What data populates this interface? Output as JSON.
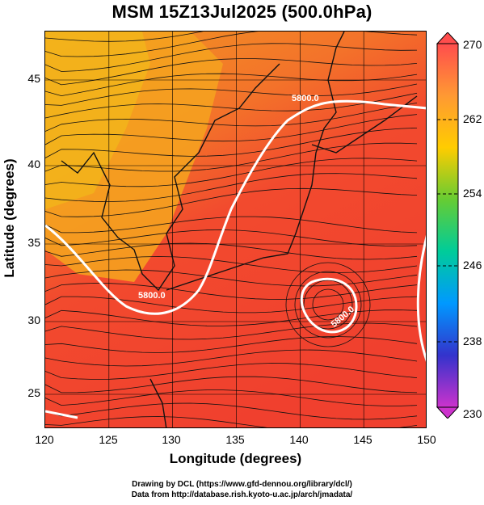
{
  "title": "MSM 15Z13Jul2025 (500.0hPa)",
  "xlabel": "Longitude (degrees)",
  "ylabel": "Latitude  (degrees)",
  "x_ticks": [
    "120",
    "125",
    "130",
    "135",
    "140",
    "145",
    "150"
  ],
  "y_ticks": [
    "25",
    "30",
    "35",
    "40",
    "45"
  ],
  "colorbar": {
    "ticks": [
      "270",
      "262",
      "254",
      "246",
      "238",
      "230"
    ],
    "colors": [
      "#ff4d4d",
      "#ff9933",
      "#ffcc00",
      "#66cc33",
      "#00cc99",
      "#0099ff",
      "#3333cc",
      "#cc33cc"
    ]
  },
  "contour_labels": [
    "5800.0",
    "5800.0",
    "5800.0"
  ],
  "credits": [
    "Drawing by DCL (https://www.gfd-dennou.org/library/dcl/)",
    "Data from http://database.rish.kyoto-u.ac.jp/arch/jmadata/"
  ]
}
